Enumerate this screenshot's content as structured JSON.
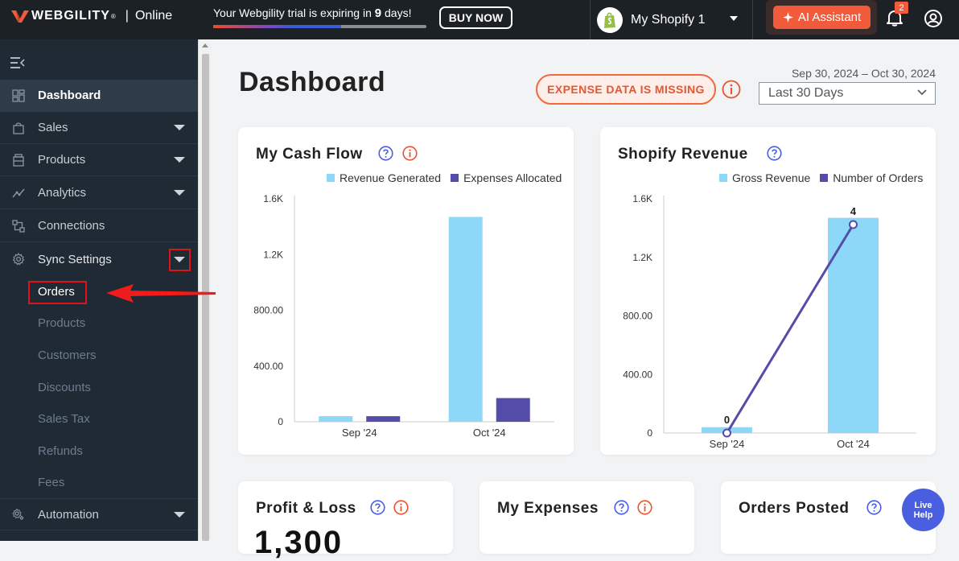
{
  "header": {
    "brand": "WEBGILITY",
    "brand_reg": "®",
    "separator": "|",
    "edition": "Online",
    "trial_prefix": "Your Webgility trial is expiring in ",
    "trial_days": "9",
    "trial_suffix": " days!",
    "trial_progress": 0.6,
    "buy_label": "BUY NOW",
    "store_name": "My Shopify 1",
    "ai_label": "AI Assistant",
    "notification_count": "2"
  },
  "sidebar": {
    "items": [
      {
        "label": "Dashboard",
        "icon": "grid-icon",
        "active": true
      },
      {
        "label": "Sales",
        "icon": "bag-icon"
      },
      {
        "label": "Products",
        "icon": "box-icon"
      },
      {
        "label": "Analytics",
        "icon": "trend-icon"
      },
      {
        "label": "Connections",
        "icon": "connections-icon"
      },
      {
        "label": "Sync Settings",
        "icon": "gear-icon"
      },
      {
        "label": "Automation",
        "icon": "automation-icon"
      }
    ],
    "sync_sub_items": [
      "Orders",
      "Products",
      "Customers",
      "Discounts",
      "Sales Tax",
      "Refunds",
      "Fees"
    ]
  },
  "main": {
    "title": "Dashboard",
    "expense_alert": "EXPENSE DATA IS MISSING",
    "date_range": "Sep 30, 2024 – Oct 30, 2024",
    "period": "Last 30 Days"
  },
  "cards": {
    "cash_flow": {
      "title": "My Cash Flow"
    },
    "revenue": {
      "title": "Shopify Revenue"
    },
    "profit_loss": {
      "title": "Profit & Loss",
      "value": "1,300"
    },
    "expenses": {
      "title": "My Expenses"
    },
    "orders_posted": {
      "title": "Orders Posted"
    }
  },
  "live_help": {
    "line1": "Live",
    "line2": "Help"
  },
  "colors": {
    "accent": "#f15a3a",
    "light_bar": "#8dd8f8",
    "dark_bar": "#544ca8",
    "alert_red": "#e0131a"
  },
  "chart_data": [
    {
      "type": "bar",
      "title": "My Cash Flow",
      "categories": [
        "Sep '24",
        "Oct '24"
      ],
      "series": [
        {
          "name": "Revenue Generated",
          "values": [
            40,
            1470
          ]
        },
        {
          "name": "Expenses Allocated",
          "values": [
            40,
            170
          ]
        }
      ],
      "y_ticks": [
        "0",
        "400.00",
        "800.00",
        "1.2K",
        "1.6K"
      ],
      "ylim": [
        0,
        1600
      ],
      "legend": "top-right",
      "grid": false
    },
    {
      "type": "bar",
      "title": "Shopify Revenue",
      "categories": [
        "Sep '24",
        "Oct '24"
      ],
      "series": [
        {
          "name": "Gross Revenue",
          "values": [
            40,
            1470
          ]
        },
        {
          "name": "Number of Orders",
          "type": "line",
          "values": [
            0,
            4
          ],
          "labels": [
            "0",
            "4"
          ]
        }
      ],
      "y_ticks": [
        "0",
        "400.00",
        "800.00",
        "1.2K",
        "1.6K"
      ],
      "ylim": [
        0,
        1600
      ],
      "legend": "top-right",
      "grid": false
    }
  ]
}
